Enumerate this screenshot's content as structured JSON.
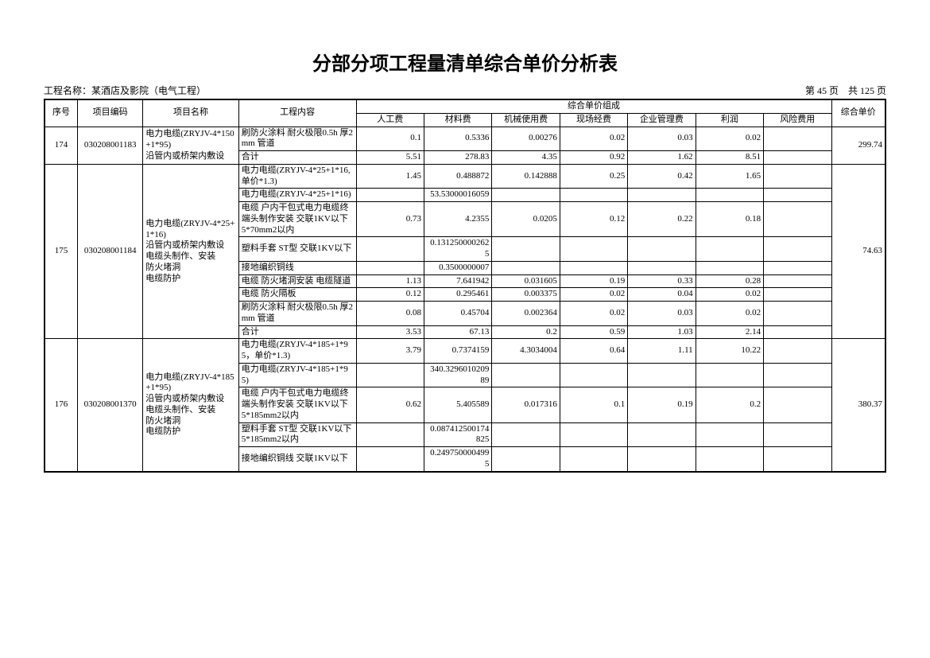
{
  "title": "分部分项工程量清单综合单价分析表",
  "project_label": "工程名称：",
  "project_name": "某酒店及影院（电气工程）",
  "page_info_left": "第 45 页",
  "page_info_right": "共 125 页",
  "headers": {
    "seq": "序号",
    "code": "项目编码",
    "name": "项目名称",
    "desc": "工程内容",
    "group": "综合单价组成",
    "labor": "人工费",
    "material": "材料费",
    "machine": "机械使用费",
    "site": "现场经费",
    "mgmt": "企业管理费",
    "profit": "利润",
    "risk": "风险费用",
    "total": "综合单价"
  },
  "rows": [
    {
      "seq": "174",
      "code": "030208001183",
      "name": "电力电缆(ZRYJV-4*150+1*95)\n沿管内或桥架内敷设",
      "total": "299.74",
      "lines": [
        {
          "desc": "刷防火涂料 耐火极限0.5h 厚2mm 管道",
          "labor": "0.1",
          "material": "0.5336",
          "machine": "0.00276",
          "site": "0.02",
          "mgmt": "0.03",
          "profit": "0.02",
          "risk": ""
        },
        {
          "desc": "合计",
          "labor": "5.51",
          "material": "278.83",
          "machine": "4.35",
          "site": "0.92",
          "mgmt": "1.62",
          "profit": "8.51",
          "risk": ""
        }
      ]
    },
    {
      "seq": "175",
      "code": "030208001184",
      "name": "电力电缆(ZRYJV-4*25+1*16)\n沿管内或桥架内敷设\n电缆头制作、安装\n防火堵洞\n电缆防护",
      "total": "74.63",
      "lines": [
        {
          "desc": "电力电缆(ZRYJV-4*25+1*16,单价*1.3)",
          "labor": "1.45",
          "material": "0.488872",
          "machine": "0.142888",
          "site": "0.25",
          "mgmt": "0.42",
          "profit": "1.65",
          "risk": ""
        },
        {
          "desc": "电力电缆(ZRYJV-4*25+1*16)",
          "labor": "",
          "material": "53.53000016059",
          "machine": "",
          "site": "",
          "mgmt": "",
          "profit": "",
          "risk": ""
        },
        {
          "desc": "电缆 户内干包式电力电缆终端头制作安装 交联1KV以下 5*70mm2以内",
          "labor": "0.73",
          "material": "4.2355",
          "machine": "0.0205",
          "site": "0.12",
          "mgmt": "0.22",
          "profit": "0.18",
          "risk": ""
        },
        {
          "desc": "塑料手套 ST型 交联1KV以下",
          "labor": "",
          "material": "0.1312500002625",
          "machine": "",
          "site": "",
          "mgmt": "",
          "profit": "",
          "risk": ""
        },
        {
          "desc": "接地编织铜线",
          "labor": "",
          "material": "0.3500000007",
          "machine": "",
          "site": "",
          "mgmt": "",
          "profit": "",
          "risk": ""
        },
        {
          "desc": "电缆 防火堵洞安装 电缆隧道",
          "labor": "1.13",
          "material": "7.641942",
          "machine": "0.031605",
          "site": "0.19",
          "mgmt": "0.33",
          "profit": "0.28",
          "risk": ""
        },
        {
          "desc": "电缆 防火隔板",
          "labor": "0.12",
          "material": "0.295461",
          "machine": "0.003375",
          "site": "0.02",
          "mgmt": "0.04",
          "profit": "0.02",
          "risk": ""
        },
        {
          "desc": "刷防火涂料 耐火极限0.5h 厚2mm 管道",
          "labor": "0.08",
          "material": "0.45704",
          "machine": "0.002364",
          "site": "0.02",
          "mgmt": "0.03",
          "profit": "0.02",
          "risk": ""
        },
        {
          "desc": "合计",
          "labor": "3.53",
          "material": "67.13",
          "machine": "0.2",
          "site": "0.59",
          "mgmt": "1.03",
          "profit": "2.14",
          "risk": ""
        }
      ]
    },
    {
      "seq": "176",
      "code": "030208001370",
      "name": "电力电缆(ZRYJV-4*185+1*95)\n沿管内或桥架内敷设\n电缆头制作、安装\n防火堵洞\n电缆防护",
      "total": "380.37",
      "lines": [
        {
          "desc": "电力电缆(ZRYJV-4*185+1*95，单价*1.3)",
          "labor": "3.79",
          "material": "0.7374159",
          "machine": "4.3034004",
          "site": "0.64",
          "mgmt": "1.11",
          "profit": "10.22",
          "risk": ""
        },
        {
          "desc": "电力电缆(ZRYJV-4*185+1*95)",
          "labor": "",
          "material": "340.329601020989",
          "machine": "",
          "site": "",
          "mgmt": "",
          "profit": "",
          "risk": ""
        },
        {
          "desc": "电缆 户内干包式电力电缆终端头制作安装 交联1KV以下 5*185mm2以内",
          "labor": "0.62",
          "material": "5.405589",
          "machine": "0.017316",
          "site": "0.1",
          "mgmt": "0.19",
          "profit": "0.2",
          "risk": ""
        },
        {
          "desc": "塑料手套 ST型 交联1KV以下 5*185mm2以内",
          "labor": "",
          "material": "0.087412500174825",
          "machine": "",
          "site": "",
          "mgmt": "",
          "profit": "",
          "risk": ""
        },
        {
          "desc": "接地编织铜线 交联1KV以下",
          "labor": "",
          "material": "0.2497500004995",
          "machine": "",
          "site": "",
          "mgmt": "",
          "profit": "",
          "risk": ""
        }
      ]
    }
  ]
}
